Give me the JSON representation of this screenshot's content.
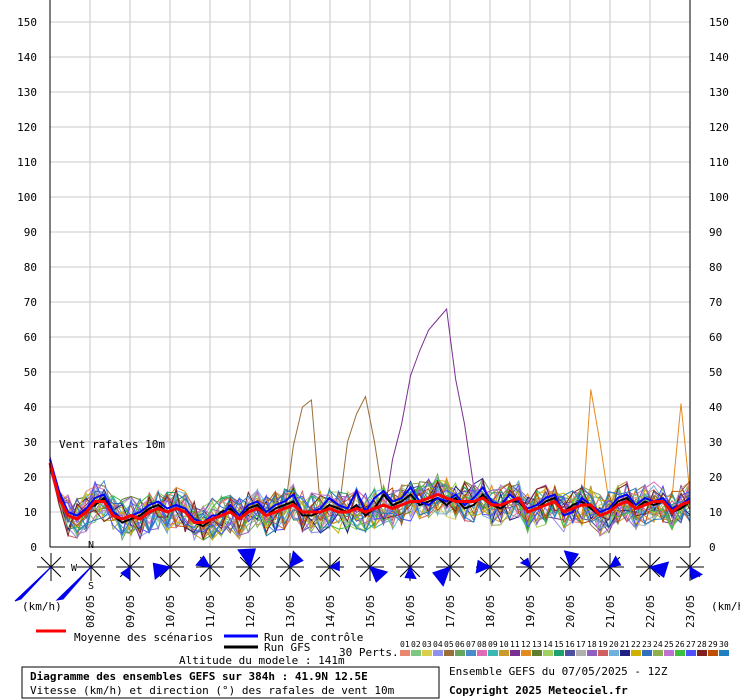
{
  "chart_data": {
    "type": "line",
    "title": "Diagramme des ensembles GEFS sur 384h : 41.9N 12.5E",
    "subtitle": "Vitesse (km/h) et direction (°) des rafales de vent 10m",
    "inner_label": "Vent rafales 10m",
    "unit_left": "(km/h)",
    "unit_right": "(km/h)",
    "altitude": "Altitude du modele : 141m",
    "run_info": "Ensemble GEFS du 07/05/2025 - 12Z",
    "copyright": "Copyright 2025 Meteociel.fr",
    "ylim": [
      0,
      150
    ],
    "yticks": [
      0,
      10,
      20,
      30,
      40,
      50,
      60,
      70,
      80,
      90,
      100,
      110,
      120,
      130,
      140,
      150
    ],
    "xlim": [
      0,
      63
    ],
    "grid": true,
    "date_labels": [
      {
        "x": 4,
        "label": "08/05"
      },
      {
        "x": 8,
        "label": "09/05"
      },
      {
        "x": 12,
        "label": "10/05"
      },
      {
        "x": 16,
        "label": "11/05"
      },
      {
        "x": 20,
        "label": "12/05"
      },
      {
        "x": 24,
        "label": "13/05"
      },
      {
        "x": 28,
        "label": "14/05"
      },
      {
        "x": 32,
        "label": "15/05"
      },
      {
        "x": 36,
        "label": "16/05"
      },
      {
        "x": 40,
        "label": "17/05"
      },
      {
        "x": 44,
        "label": "18/05"
      },
      {
        "x": 48,
        "label": "19/05"
      },
      {
        "x": 52,
        "label": "20/05"
      },
      {
        "x": 56,
        "label": "21/05"
      },
      {
        "x": 60,
        "label": "22/05"
      },
      {
        "x": 64,
        "label": "23/05"
      }
    ],
    "mean": {
      "name": "Moyenne des scénarios",
      "color": "#ff0000",
      "values": [
        24,
        14,
        9,
        8,
        10,
        13,
        13,
        9,
        8,
        9,
        8,
        10,
        11,
        10,
        11,
        10,
        7,
        7,
        8,
        9,
        10,
        8,
        10,
        11,
        9,
        10,
        11,
        12,
        10,
        10,
        10,
        11,
        10,
        10,
        11,
        10,
        11,
        12,
        11,
        12,
        13,
        13,
        14,
        15,
        14,
        13,
        13,
        13,
        14,
        12,
        12,
        13,
        14,
        10,
        11,
        12,
        13,
        10,
        11,
        12,
        12,
        9,
        10,
        12,
        13,
        11,
        12,
        13,
        13,
        10,
        12,
        13
      ]
    },
    "control": {
      "name": "Run de contrôle",
      "color": "#0000ff",
      "values": [
        25,
        16,
        10,
        9,
        11,
        14,
        15,
        10,
        8,
        9,
        10,
        12,
        13,
        11,
        12,
        11,
        8,
        7,
        9,
        9,
        12,
        9,
        12,
        13,
        10,
        12,
        13,
        15,
        10,
        10,
        11,
        14,
        12,
        11,
        16,
        10,
        14,
        16,
        13,
        14,
        17,
        13,
        12,
        14,
        13,
        15,
        12,
        14,
        17,
        13,
        12,
        15,
        13,
        11,
        12,
        14,
        15,
        9,
        10,
        14,
        12,
        10,
        11,
        14,
        15,
        12,
        14,
        13,
        14,
        11,
        12,
        14
      ]
    },
    "gfs": {
      "name": "Run GFS",
      "color": "#000000",
      "values": [
        23,
        15,
        9,
        8,
        11,
        12,
        14,
        9,
        7,
        8,
        9,
        11,
        12,
        10,
        11,
        10,
        7,
        6,
        8,
        10,
        11,
        8,
        11,
        12,
        9,
        11,
        12,
        13,
        9,
        9,
        10,
        12,
        11,
        10,
        12,
        9,
        11,
        15,
        12,
        13,
        15,
        12,
        13,
        14,
        12,
        14,
        11,
        12,
        15,
        12,
        11,
        13,
        13,
        10,
        11,
        13,
        14,
        10,
        12,
        13,
        11,
        9,
        10,
        13,
        14,
        11,
        13,
        12,
        13,
        10,
        11,
        13
      ]
    },
    "perturbations_label": "30 Perts.",
    "perturbations": [
      {
        "name": "01",
        "color": "#e9876f"
      },
      {
        "name": "02",
        "color": "#7fc77f"
      },
      {
        "name": "03",
        "color": "#d8cf4d"
      },
      {
        "name": "04",
        "color": "#8f8fef"
      },
      {
        "name": "05",
        "color": "#9a6e3a"
      },
      {
        "name": "06",
        "color": "#6aa55f"
      },
      {
        "name": "07",
        "color": "#4a8cc9"
      },
      {
        "name": "08",
        "color": "#e06bb8"
      },
      {
        "name": "09",
        "color": "#38b8b0"
      },
      {
        "name": "10",
        "color": "#c89a2a"
      },
      {
        "name": "11",
        "color": "#7a2f91"
      },
      {
        "name": "12",
        "color": "#e58a1f"
      },
      {
        "name": "13",
        "color": "#5f7f2f"
      },
      {
        "name": "14",
        "color": "#a0d060"
      },
      {
        "name": "15",
        "color": "#1fa06f"
      },
      {
        "name": "16",
        "color": "#4f4f9f"
      },
      {
        "name": "17",
        "color": "#b0b0b0"
      },
      {
        "name": "18",
        "color": "#9060c0"
      },
      {
        "name": "19",
        "color": "#d06060"
      },
      {
        "name": "20",
        "color": "#6fb0df"
      },
      {
        "name": "21",
        "color": "#202080"
      },
      {
        "name": "22",
        "color": "#d0b000"
      },
      {
        "name": "23",
        "color": "#2f6fbf"
      },
      {
        "name": "24",
        "color": "#8fb04f"
      },
      {
        "name": "25",
        "color": "#c070d0"
      },
      {
        "name": "26",
        "color": "#3fbf3f"
      },
      {
        "name": "27",
        "color": "#5050ff"
      },
      {
        "name": "28",
        "color": "#7f1f1f"
      },
      {
        "name": "29",
        "color": "#bf4f00"
      },
      {
        "name": "30",
        "color": "#1f7fbf"
      }
    ]
  }
}
